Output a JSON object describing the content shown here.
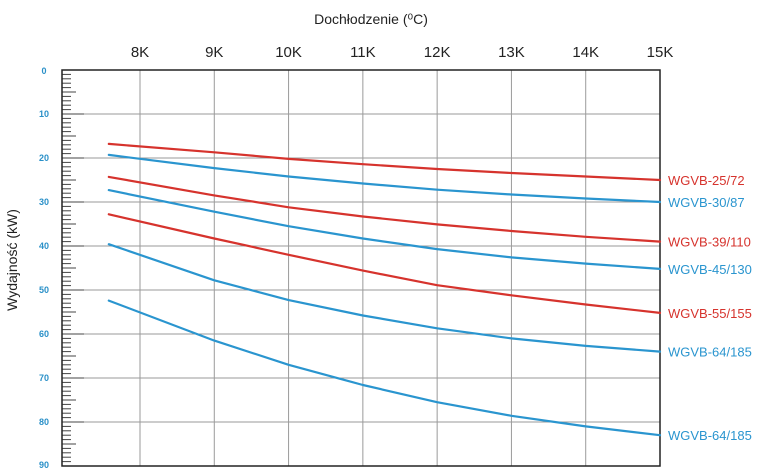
{
  "chart_data": {
    "type": "line",
    "xlabel": "Dochłodzenie (⁰C)",
    "ylabel": "Wydajność (kW)",
    "x_ticks": [
      "8K",
      "9K",
      "10K",
      "11K",
      "12K",
      "13K",
      "14K",
      "15K"
    ],
    "x_values": [
      8,
      9,
      10,
      11,
      12,
      13,
      14,
      15
    ],
    "y_ticks": [
      "0",
      "10",
      "20",
      "30",
      "40",
      "50",
      "60",
      "70",
      "80",
      "90"
    ],
    "xlim": [
      7,
      15
    ],
    "ylim": [
      0,
      90
    ],
    "y_inverted": true,
    "grid": true,
    "series": [
      {
        "name": "WGVB-25/72",
        "color": "#d6332d",
        "x": [
          7.6,
          9,
          10,
          11,
          12,
          13,
          14,
          15
        ],
        "values": [
          16.8,
          18.7,
          20.2,
          21.4,
          22.5,
          23.4,
          24.2,
          25.0
        ]
      },
      {
        "name": "WGVB-30/87",
        "color": "#2a95cf",
        "x": [
          7.6,
          9,
          10,
          11,
          12,
          13,
          14,
          15
        ],
        "values": [
          19.3,
          22.3,
          24.2,
          25.8,
          27.2,
          28.3,
          29.2,
          30.0
        ]
      },
      {
        "name": "WGVB-39/110",
        "color": "#d6332d",
        "x": [
          7.6,
          9,
          10,
          11,
          12,
          13,
          14,
          15
        ],
        "values": [
          24.3,
          28.5,
          31.2,
          33.3,
          35.1,
          36.6,
          37.9,
          39.0
        ]
      },
      {
        "name": "WGVB-45/130",
        "color": "#2a95cf",
        "x": [
          7.6,
          9,
          10,
          11,
          12,
          13,
          14,
          15
        ],
        "values": [
          27.3,
          32.2,
          35.5,
          38.3,
          40.7,
          42.6,
          44.0,
          45.2
        ]
      },
      {
        "name": "WGVB-55/155",
        "color": "#d6332d",
        "x": [
          7.6,
          9,
          10,
          11,
          12,
          13,
          14,
          15
        ],
        "values": [
          32.8,
          38.3,
          42.0,
          45.6,
          48.9,
          51.2,
          53.3,
          55.2
        ]
      },
      {
        "name": "WGVB-64/185",
        "color": "#2a95cf",
        "x": [
          7.6,
          9,
          10,
          11,
          12,
          13,
          14,
          15
        ],
        "values": [
          39.6,
          47.8,
          52.3,
          55.8,
          58.7,
          61.0,
          62.7,
          64.0
        ]
      },
      {
        "name": "WGVB-64/185",
        "color": "#2a95cf",
        "x": [
          7.6,
          9,
          10,
          11,
          12,
          13,
          14,
          15
        ],
        "values": [
          52.4,
          61.5,
          67.0,
          71.6,
          75.5,
          78.6,
          81.0,
          83.0
        ]
      }
    ]
  }
}
